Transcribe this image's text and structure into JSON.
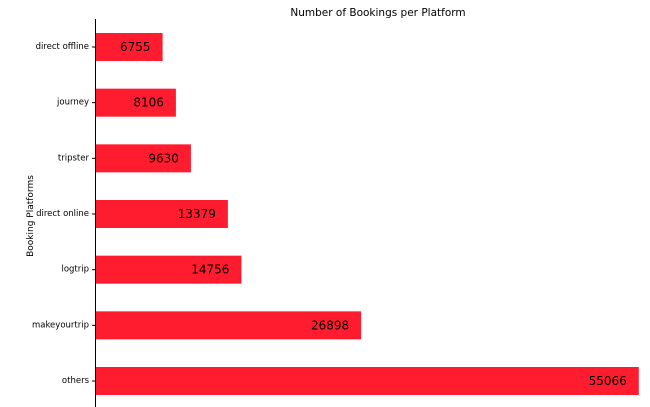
{
  "chart_data": {
    "type": "bar",
    "orientation": "horizontal",
    "title": "Number of Bookings per Platform",
    "xlabel": "",
    "ylabel": "Booking Platforms",
    "categories": [
      "direct offline",
      "journey",
      "tripster",
      "direct online",
      "logtrip",
      "makeyourtrip",
      "others"
    ],
    "values": [
      6755,
      8106,
      9630,
      13379,
      14756,
      26898,
      55066
    ],
    "xlim": [
      0,
      56000
    ],
    "grid": false,
    "legend": "none",
    "bar_color": "#ff1c2e"
  }
}
